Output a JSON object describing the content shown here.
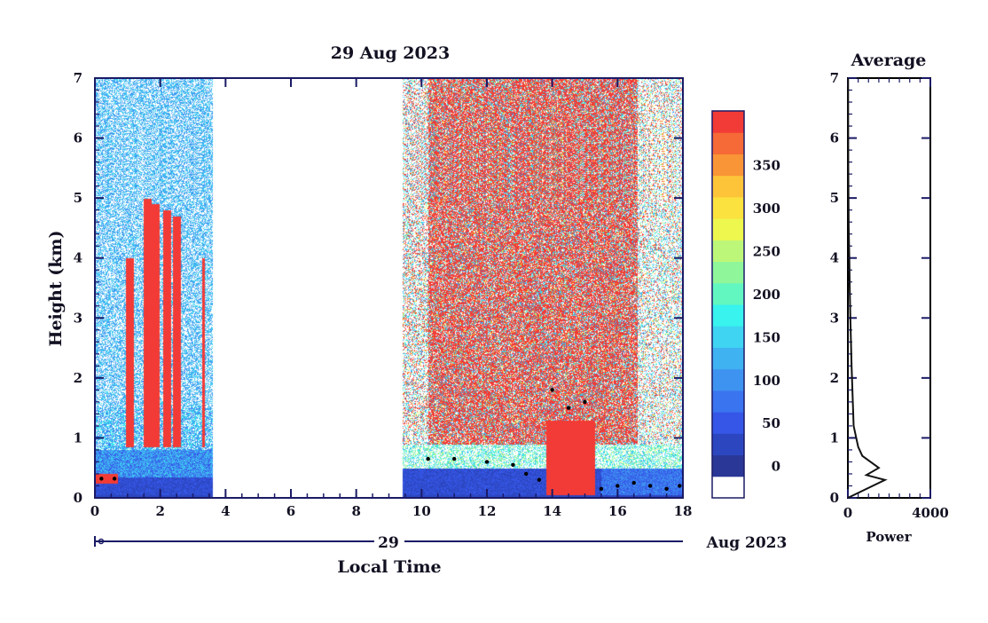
{
  "chart_data": [
    {
      "type": "heatmap",
      "title": "29 Aug 2023",
      "xlabel": "Local Time",
      "ylabel": "Height (km)",
      "xlim": [
        0,
        18
      ],
      "ylim": [
        0,
        7
      ],
      "x_ticks": [
        "0",
        "2",
        "4",
        "6",
        "8",
        "10",
        "12",
        "14",
        "16",
        "18"
      ],
      "y_ticks": [
        "0",
        "1",
        "2",
        "3",
        "4",
        "5",
        "6",
        "7"
      ],
      "date_axis": {
        "day_label": "29",
        "month_label": "Aug 2023"
      },
      "data_gap_hours": [
        3.6,
        9.4
      ],
      "colorbar": {
        "min": 0,
        "max": 375,
        "step": 25,
        "tick_labels": [
          "0",
          "50",
          "100",
          "150",
          "200",
          "250",
          "300",
          "350"
        ],
        "levels": [
          "#ffffff",
          "#2a3796",
          "#2c46c0",
          "#3556e6",
          "#3a74ef",
          "#3f93f0",
          "#3fb2f2",
          "#3fd4f2",
          "#38f3ee",
          "#62f7c0",
          "#8ff79a",
          "#bdf779",
          "#eef74d",
          "#fbe23e",
          "#fdc43a",
          "#f99536",
          "#f56a36",
          "#f23b36"
        ]
      },
      "description_series": [
        {
          "name": "plumes",
          "hours": [
            1.05,
            1.6,
            1.85,
            2.2,
            2.5,
            3.3
          ],
          "top_km": [
            4.0,
            5.0,
            4.9,
            4.8,
            4.7,
            4.0
          ]
        },
        {
          "name": "boundary_layer_markers",
          "hours": [
            0.2,
            0.6,
            10.2,
            11.0,
            12.0,
            12.8,
            13.2,
            13.6,
            14.0,
            14.5,
            15.0,
            15.5,
            16.0,
            16.5,
            17.0,
            17.5,
            17.9
          ],
          "height_km": [
            0.32,
            0.32,
            0.65,
            0.65,
            0.6,
            0.55,
            0.4,
            0.3,
            1.8,
            1.5,
            1.6,
            0.15,
            0.2,
            0.25,
            0.2,
            0.15,
            0.2
          ]
        }
      ]
    },
    {
      "type": "line",
      "title": "Average",
      "xlabel": "Power",
      "xlim": [
        0,
        4000
      ],
      "ylim": [
        0,
        7
      ],
      "x_ticks": [
        "0",
        "4000"
      ],
      "y_ticks": [
        "0",
        "1",
        "2",
        "3",
        "4",
        "5",
        "6",
        "7"
      ],
      "profile": {
        "power": [
          0,
          1800,
          900,
          1500,
          1100,
          700,
          500,
          280,
          240,
          180,
          150,
          120,
          90,
          70,
          40,
          20,
          10
        ],
        "height_km": [
          0,
          0.3,
          0.38,
          0.5,
          0.6,
          0.7,
          0.85,
          1.2,
          1.6,
          2.2,
          2.6,
          3.0,
          3.5,
          4.0,
          4.5,
          5.5,
          7.0
        ]
      }
    }
  ]
}
